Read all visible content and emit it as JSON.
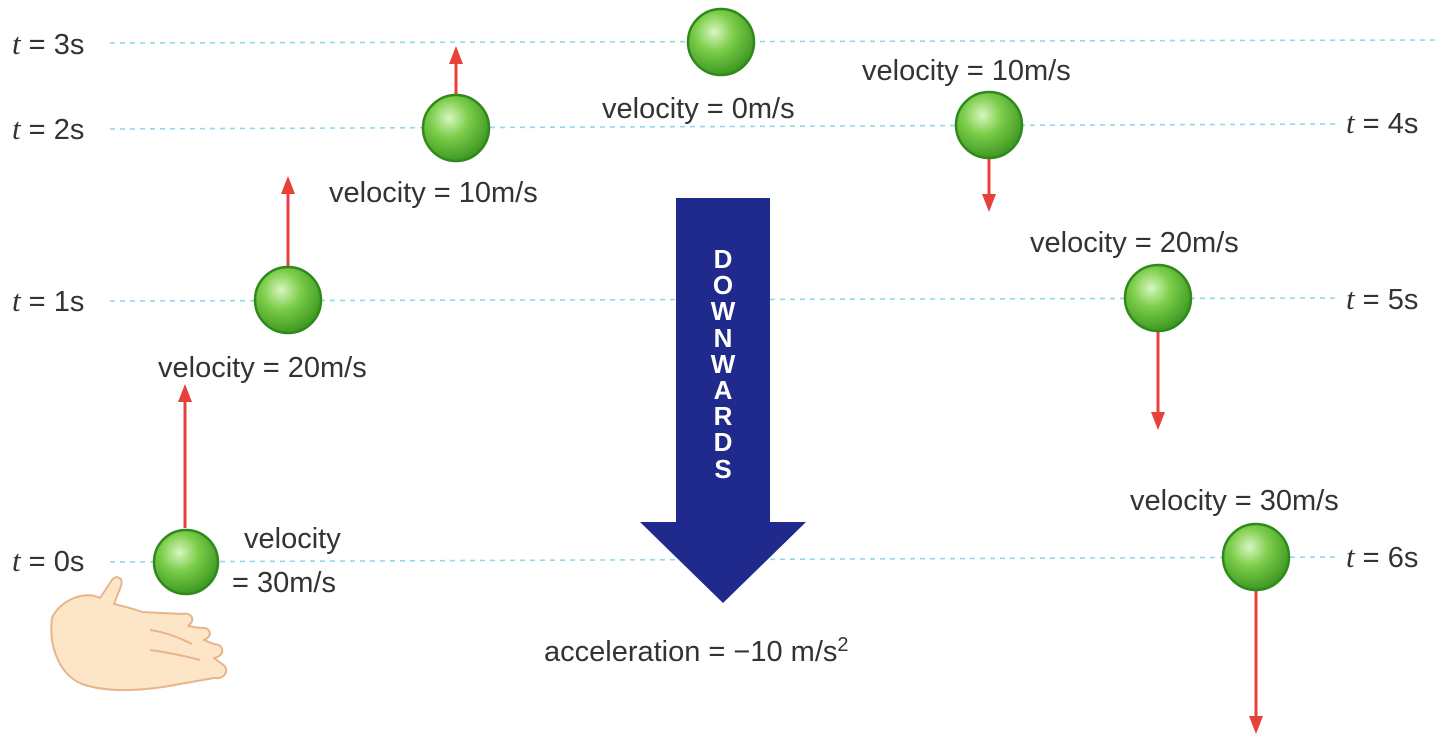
{
  "time_labels": {
    "t0": {
      "var": "t",
      "eq": " = ",
      "value": "0s"
    },
    "t1": {
      "var": "t",
      "eq": " = ",
      "value": "1s"
    },
    "t2": {
      "var": "t",
      "eq": " = ",
      "value": "2s"
    },
    "t3": {
      "var": "t",
      "eq": " = ",
      "value": "3s"
    },
    "t4": {
      "var": "t",
      "eq": " = ",
      "value": "4s"
    },
    "t5": {
      "var": "t",
      "eq": " = ",
      "value": "5s"
    },
    "t6": {
      "var": "t",
      "eq": " = ",
      "value": "6s"
    }
  },
  "velocity_labels": {
    "t0_line1": "velocity",
    "t0_line2": "= 30m/s",
    "t1": "velocity = 20m/s",
    "t2": "velocity = 10m/s",
    "t3": "velocity = 0m/s",
    "t4": "velocity = 10m/s",
    "t5": "velocity = 20m/s",
    "t6": "velocity = 30m/s"
  },
  "downwards_text": [
    "D",
    "O",
    "W",
    "N",
    "W",
    "A",
    "R",
    "D",
    "S"
  ],
  "acceleration": {
    "text": "acceleration = −10 m/s",
    "superscript": "2"
  },
  "colors": {
    "ball": "#4caf2a",
    "ball_highlight": "#c8f0a8",
    "ball_outline": "#2e8a1a",
    "velocity_arrow": "#e8403a",
    "big_arrow": "#1f2a8c",
    "guide_line": "#8fd8ea",
    "hand": "#fde6c8",
    "hand_outline": "#e8b48a"
  },
  "icons": {
    "ball": "ball-icon",
    "hand": "hand-icon",
    "downwards_arrow": "down-arrow-icon"
  }
}
